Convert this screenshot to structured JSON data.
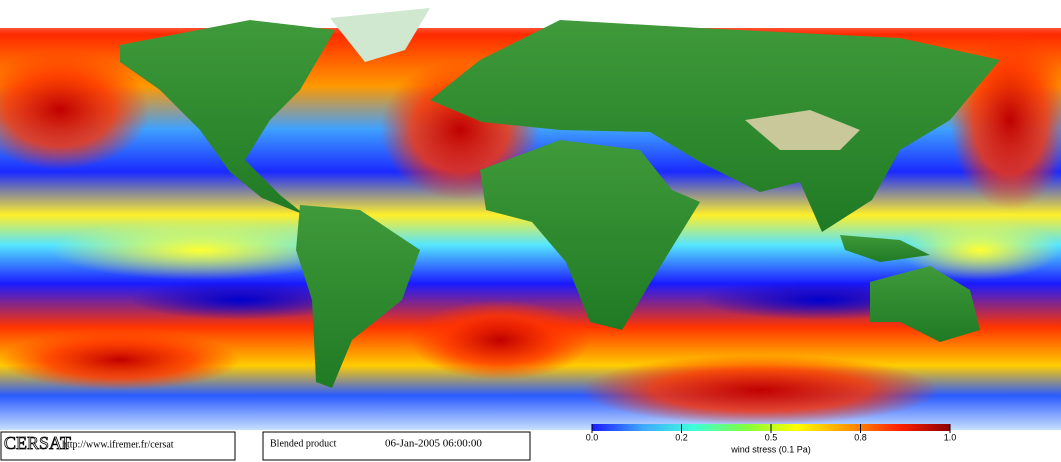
{
  "logo": {
    "name": "CERSAT",
    "url": "http://www.ifremer.fr/cersat"
  },
  "product": {
    "name": "Blended product",
    "datetime": "06-Jan-2005 06:00:00"
  },
  "colorbar": {
    "label": "wind stress (0.1 Pa)",
    "ticks": [
      {
        "value": 0,
        "label": "0.0"
      },
      {
        "value": 0.2,
        "label": "0.2"
      },
      {
        "value": 0.5,
        "label": "0.5"
      },
      {
        "value": 0.8,
        "label": "0.8"
      },
      {
        "value": 1,
        "label": "1.0"
      }
    ],
    "colors": [
      "#1a1aff",
      "#3fa9ff",
      "#3fffd9",
      "#7fff3f",
      "#ffff00",
      "#ff9900",
      "#ff2200",
      "#8b0000"
    ]
  }
}
